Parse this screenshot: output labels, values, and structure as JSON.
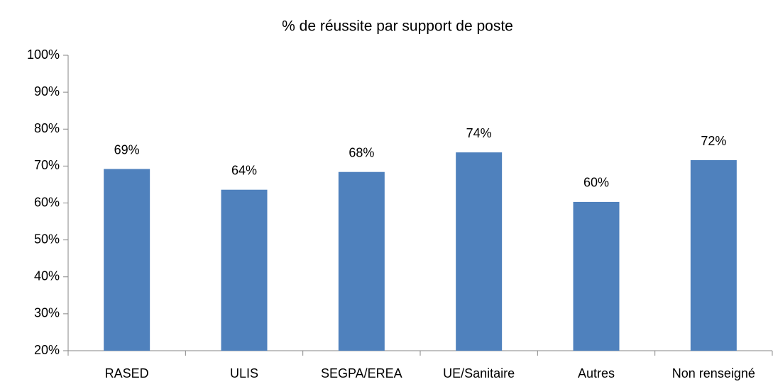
{
  "chart_data": {
    "type": "bar",
    "title": "% de réussite par support de poste",
    "categories": [
      "RASED",
      "ULIS",
      "SEGPA/EREA",
      "UE/Sanitaire",
      "Autres",
      "Non renseigné"
    ],
    "values": [
      69.2,
      63.6,
      68.4,
      73.7,
      60.3,
      71.6
    ],
    "value_labels": [
      "69%",
      "64%",
      "68%",
      "74%",
      "60%",
      "72%"
    ],
    "color": "#4f81bd",
    "ylim": [
      20,
      100
    ],
    "yticks": [
      {
        "value": 20,
        "label": "20%"
      },
      {
        "value": 30,
        "label": "30%"
      },
      {
        "value": 40,
        "label": "40%"
      },
      {
        "value": 50,
        "label": "50%"
      },
      {
        "value": 60,
        "label": "60%"
      },
      {
        "value": 70,
        "label": "70%"
      },
      {
        "value": 80,
        "label": "80%"
      },
      {
        "value": 90,
        "label": "90%"
      },
      {
        "value": 100,
        "label": "100%"
      }
    ],
    "grid": false
  }
}
